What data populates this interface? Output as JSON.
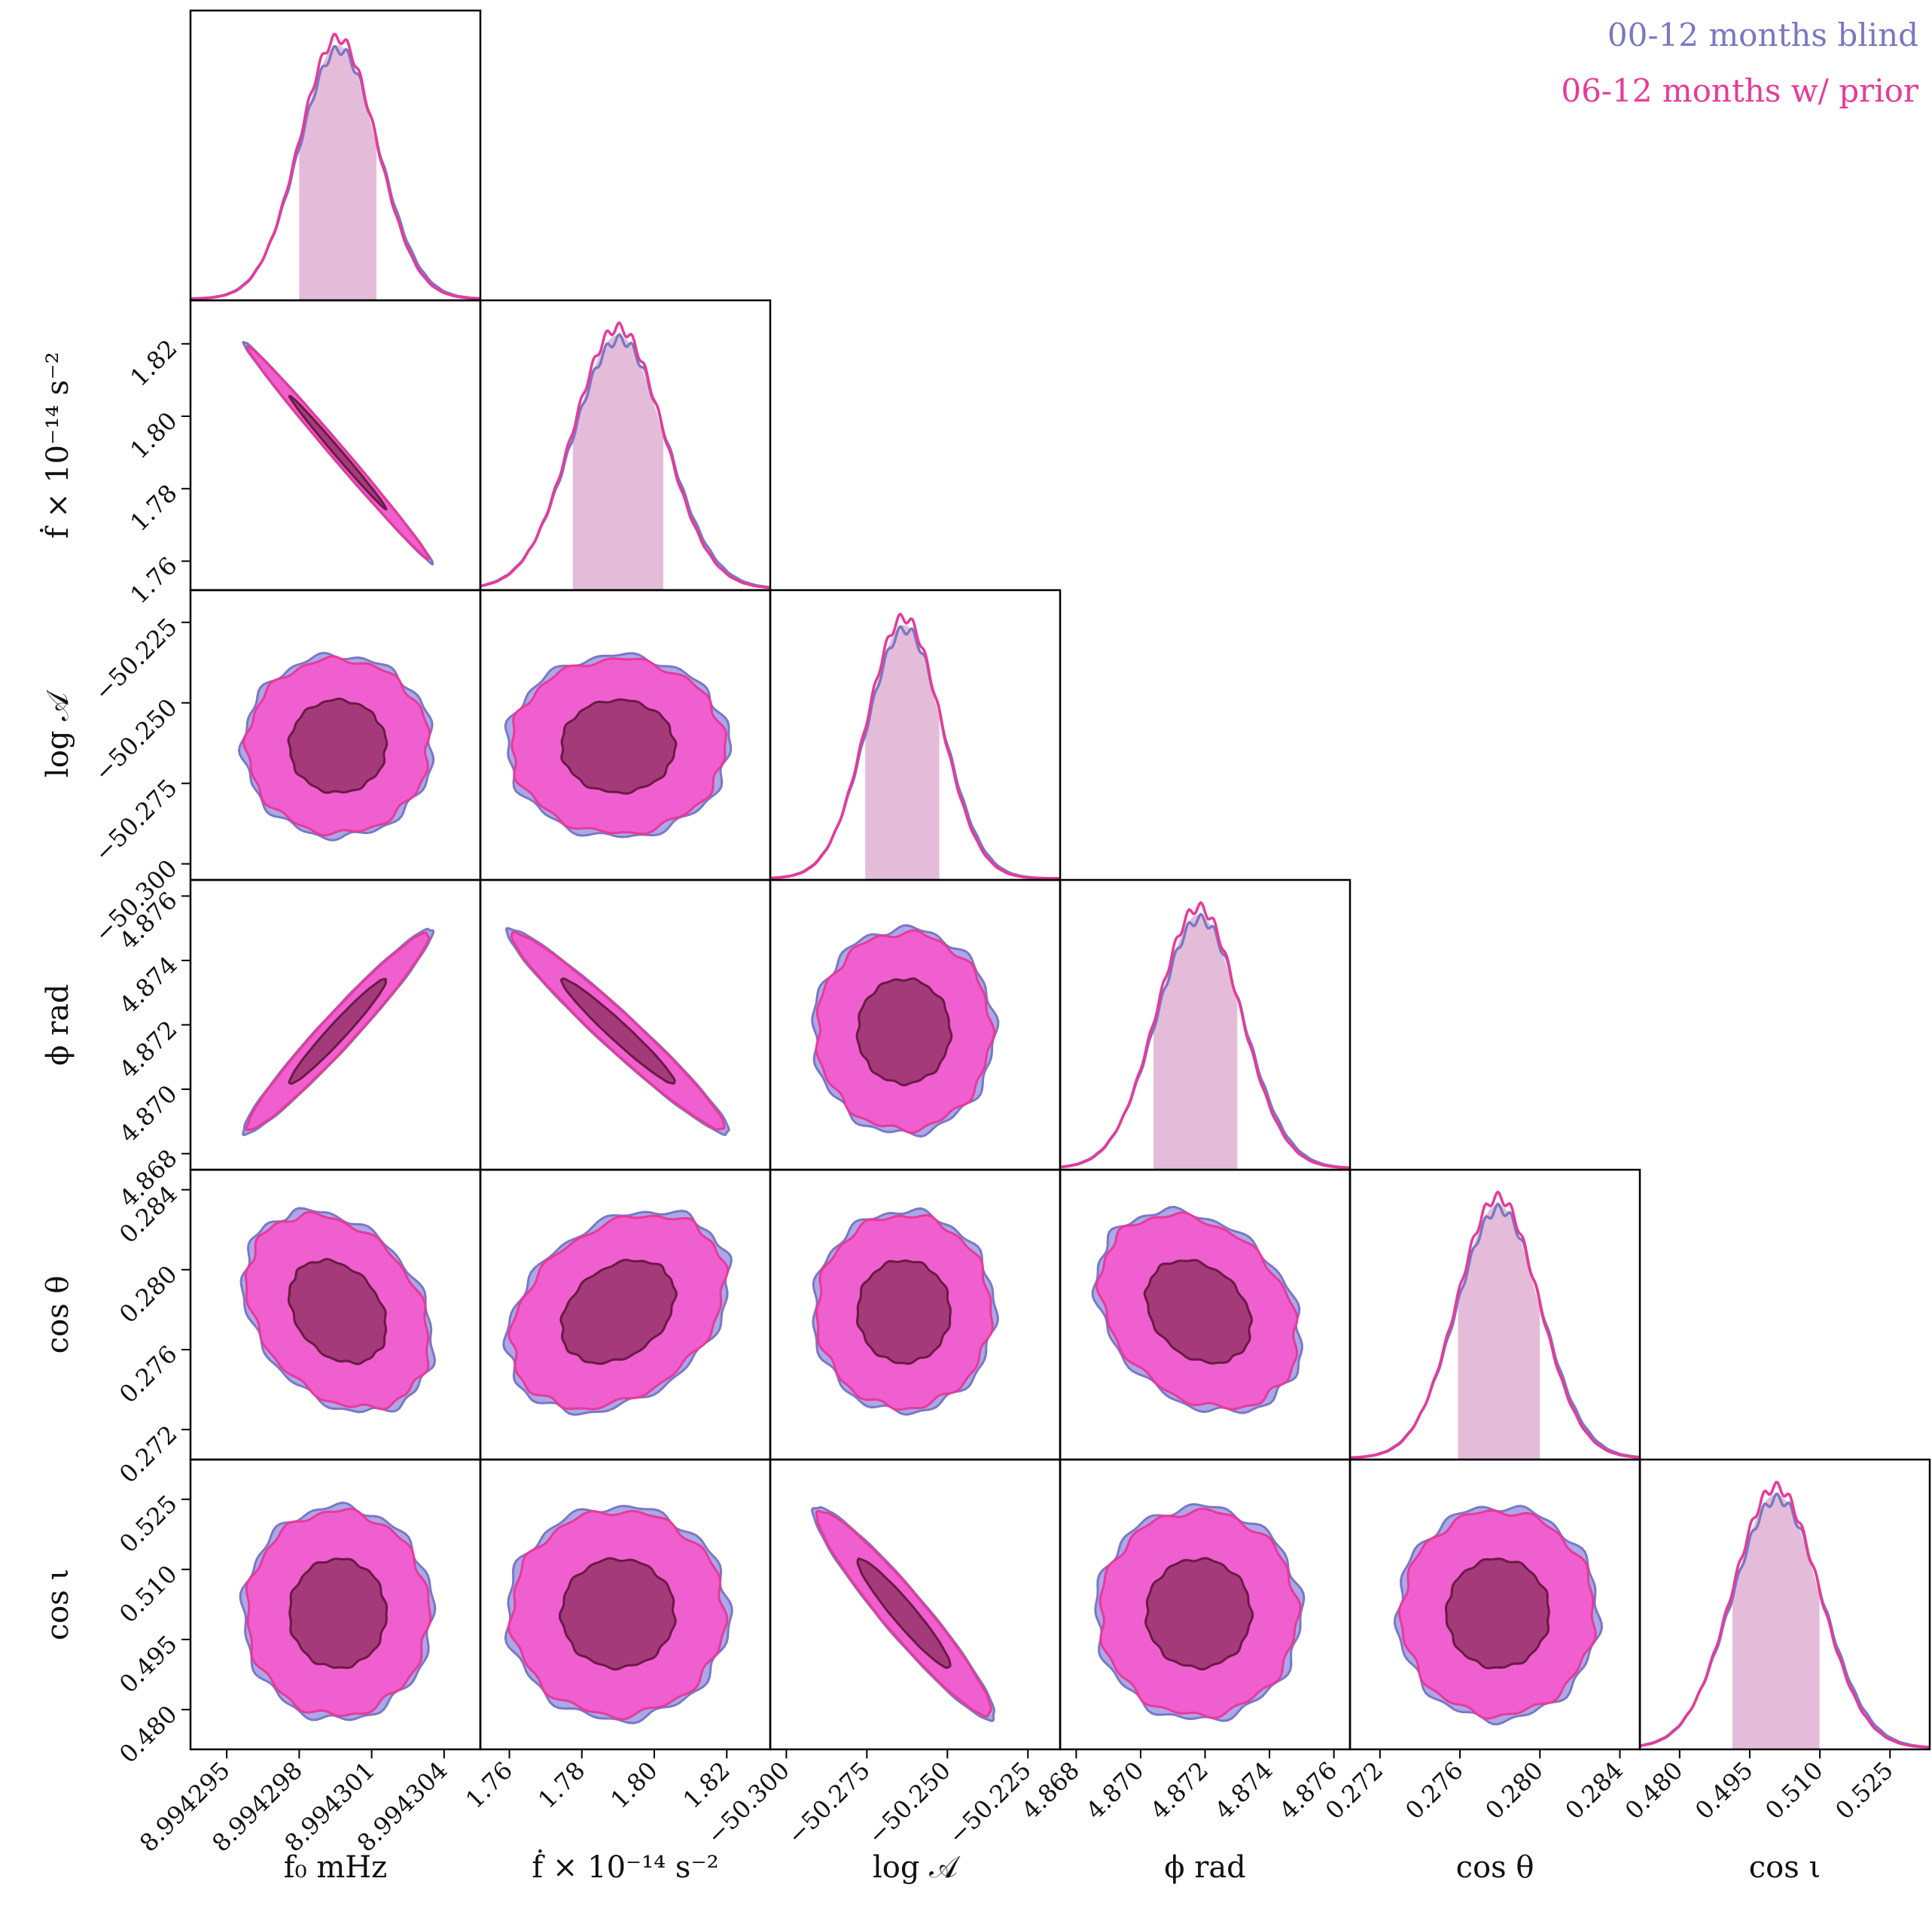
{
  "legend": {
    "blind": "00-12 months blind",
    "prior": "06-12 months w/ prior"
  },
  "colors": {
    "blind_line": "#7a78c2",
    "blind_fill": "#aaa8ea",
    "prior_line": "#e83a98",
    "prior_fill_outer": "#ef5fcf",
    "prior_fill_inner": "#a53a7a",
    "inner_line": "#6a1a45",
    "ci_fill": "#e4bcd9",
    "frame": "#000000"
  },
  "chart_data": {
    "type": "corner",
    "series": [
      {
        "name": "00-12 months blind"
      },
      {
        "name": "06-12 months w/ prior"
      }
    ],
    "parameters": [
      {
        "key": "f0",
        "xlabel": "f₀ mHz",
        "ylabel": "",
        "range": [
          8.9942935,
          8.9943055
        ],
        "median": 8.9942996,
        "ci": [
          8.994298,
          8.9943012
        ],
        "ticks": [
          "8.994295",
          "8.994298",
          "8.994301",
          "8.994304"
        ],
        "tick_values": [
          8.994295,
          8.994298,
          8.994301,
          8.994304
        ]
      },
      {
        "key": "fdot",
        "xlabel": "ḟ  × 10⁻¹⁴ s⁻²",
        "ylabel": "ḟ  × 10⁻¹⁴ s⁻²",
        "range": [
          1.752,
          1.832
        ],
        "median": 1.79,
        "ci": [
          1.7775,
          1.8025
        ],
        "ticks": [
          "1.76",
          "1.78",
          "1.80",
          "1.82"
        ],
        "tick_values": [
          1.76,
          1.78,
          1.8,
          1.82
        ]
      },
      {
        "key": "logA",
        "xlabel": "log 𝒜",
        "ylabel": "log 𝒜",
        "range": [
          -50.305,
          -50.215
        ],
        "median": -50.2635,
        "ci": [
          -50.2755,
          -50.2525
        ],
        "ticks": [
          "−50.300",
          "−50.275",
          "−50.250",
          "−50.225"
        ],
        "tick_values": [
          -50.3,
          -50.275,
          -50.25,
          -50.225
        ]
      },
      {
        "key": "phi",
        "xlabel": "ϕ rad",
        "ylabel": "ϕ rad",
        "range": [
          4.8675,
          4.8765
        ],
        "median": 4.8718,
        "ci": [
          4.8704,
          4.873
        ],
        "ticks": [
          "4.868",
          "4.870",
          "4.872",
          "4.874",
          "4.876"
        ],
        "tick_values": [
          4.868,
          4.87,
          4.872,
          4.874,
          4.876
        ]
      },
      {
        "key": "costheta",
        "xlabel": "cos θ",
        "ylabel": "cos θ",
        "range": [
          0.2705,
          0.285
        ],
        "median": 0.2779,
        "ci": [
          0.2759,
          0.28
        ],
        "ticks": [
          "0.272",
          "0.276",
          "0.280",
          "0.284"
        ],
        "tick_values": [
          0.272,
          0.276,
          0.28,
          0.284
        ]
      },
      {
        "key": "cosiota",
        "xlabel": "cos ι",
        "ylabel": "cos ι",
        "range": [
          0.4715,
          0.5335
        ],
        "median": 0.5006,
        "ci": [
          0.4913,
          0.5099
        ],
        "ticks": [
          "0.480",
          "0.495",
          "0.510",
          "0.525"
        ],
        "tick_values": [
          0.48,
          0.495,
          0.51,
          0.525
        ]
      }
    ],
    "correlations": [
      {
        "pair": [
          "fdot",
          "f0"
        ],
        "rho": -0.995
      },
      {
        "pair": [
          "phi",
          "f0"
        ],
        "rho": 0.97
      },
      {
        "pair": [
          "phi",
          "fdot"
        ],
        "rho": -0.97
      },
      {
        "pair": [
          "costheta",
          "f0"
        ],
        "rho": -0.3
      },
      {
        "pair": [
          "costheta",
          "fdot"
        ],
        "rho": 0.32
      },
      {
        "pair": [
          "costheta",
          "phi"
        ],
        "rho": -0.28
      },
      {
        "pair": [
          "cosiota",
          "logA"
        ],
        "rho": -0.95
      }
    ],
    "contour_levels": [
      "1σ",
      "2σ"
    ],
    "grid": false,
    "legend_position": "top-right"
  }
}
